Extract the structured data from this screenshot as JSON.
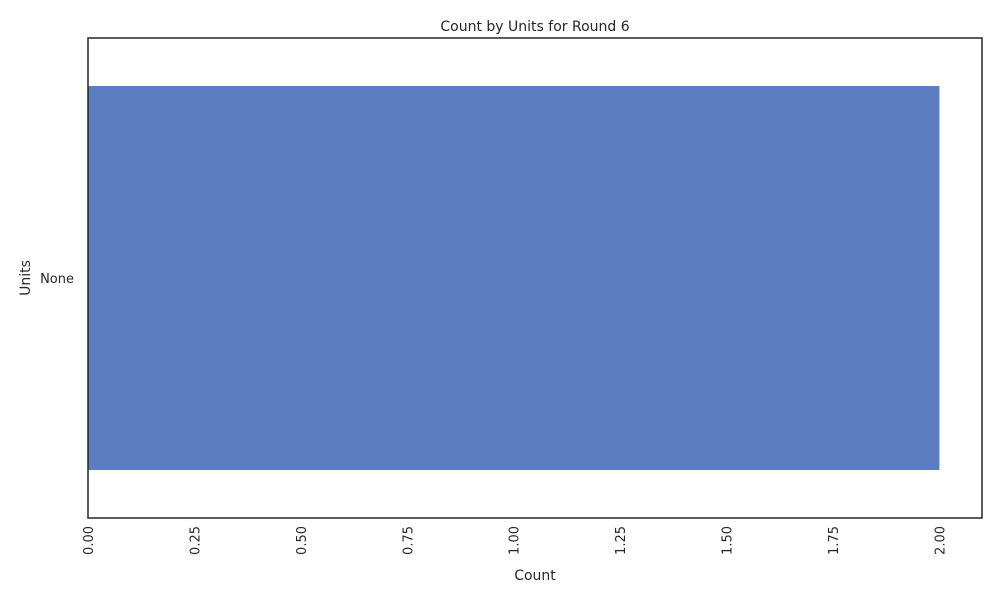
{
  "chart_data": {
    "type": "bar",
    "orientation": "horizontal",
    "title": "Count by Units for Round 6",
    "xlabel": "Count",
    "ylabel": "Units",
    "categories": [
      "None"
    ],
    "values": [
      2.0
    ],
    "xlim": [
      0,
      2.1
    ],
    "x_ticks": [
      "0.00",
      "0.25",
      "0.50",
      "0.75",
      "1.00",
      "1.25",
      "1.50",
      "1.75",
      "2.00"
    ],
    "x_tick_rotation": "vertical",
    "grid": false,
    "legend": false,
    "colors": {
      "bar": "#5b7ec0",
      "axis": "#262626"
    }
  }
}
